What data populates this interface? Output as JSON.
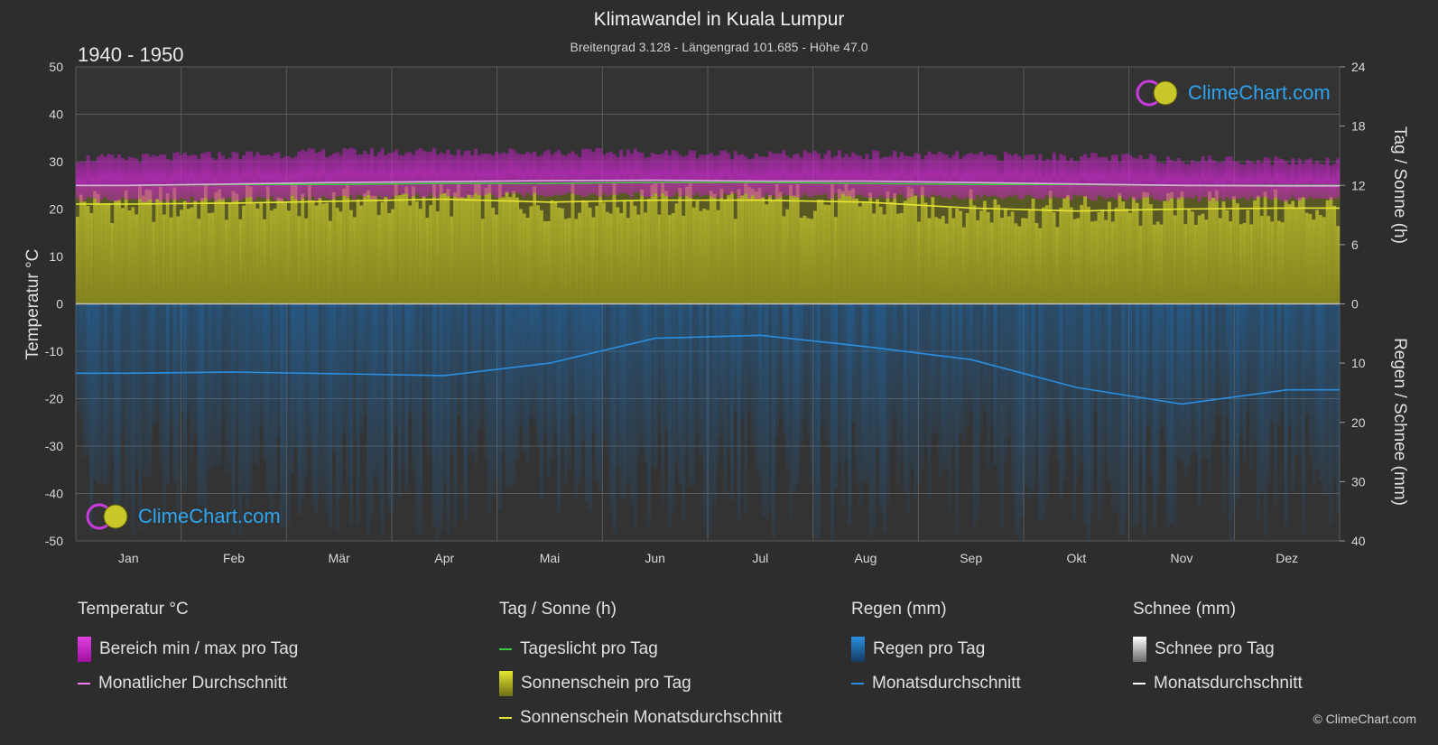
{
  "header": {
    "title": "Klimawandel in Kuala Lumpur",
    "subtitle": "Breitengrad 3.128 - Längengrad 101.685 - Höhe 47.0",
    "period": "1940 - 1950"
  },
  "axes": {
    "left_title": "Temperatur °C",
    "right_top_title": "Tag / Sonne (h)",
    "right_bottom_title": "Regen / Schnee (mm)"
  },
  "logo": {
    "text": "ClimeChart.com"
  },
  "copyright": "© ClimeChart.com",
  "colors": {
    "background": "#2d2d2d",
    "temp_range": "#c81ec8",
    "temp_avg": "#f07cf0",
    "daylight": "#3cc83c",
    "sunshine": "#a8a828",
    "sunshine_avg": "#e6e632",
    "rain": "#1e6eb4",
    "rain_avg": "#2a8ee0",
    "snow": "#d0d0d0",
    "snow_avg": "#ffffff"
  },
  "chart_data": {
    "type": "area",
    "months": [
      "Jan",
      "Feb",
      "Mär",
      "Apr",
      "Mai",
      "Jun",
      "Jul",
      "Aug",
      "Sep",
      "Okt",
      "Nov",
      "Dez"
    ],
    "y_left": {
      "label": "Temperatur °C",
      "min": -50,
      "max": 50,
      "ticks": [
        50,
        40,
        30,
        20,
        10,
        0,
        -10,
        -20,
        -30,
        -40,
        -50
      ]
    },
    "y_right_top": {
      "label": "Tag / Sonne (h)",
      "min": 0,
      "max": 24,
      "ticks": [
        24,
        18,
        12,
        6,
        0
      ]
    },
    "y_right_bottom": {
      "label": "Regen / Schnee (mm)",
      "min": 0,
      "max": 40,
      "ticks": [
        0,
        10,
        20,
        30,
        40
      ]
    },
    "series": [
      {
        "name": "Bereich min / max pro Tag",
        "type": "range",
        "unit": "°C",
        "min": [
          22.5,
          22.6,
          23.0,
          23.4,
          23.6,
          23.6,
          23.3,
          23.3,
          23.1,
          23.0,
          22.8,
          22.6
        ],
        "max": [
          30.5,
          31.2,
          31.8,
          31.9,
          31.8,
          31.6,
          31.3,
          31.3,
          31.0,
          30.8,
          30.3,
          30.0
        ]
      },
      {
        "name": "Monatlicher Durchschnitt",
        "type": "line",
        "unit": "°C",
        "values": [
          25.0,
          25.3,
          25.6,
          25.8,
          26.0,
          26.1,
          25.9,
          25.9,
          25.6,
          25.3,
          25.0,
          24.9
        ]
      },
      {
        "name": "Tageslicht pro Tag",
        "type": "line",
        "unit": "h",
        "values": [
          12.0,
          12.1,
          12.1,
          12.2,
          12.2,
          12.3,
          12.3,
          12.2,
          12.1,
          12.1,
          12.0,
          12.0
        ]
      },
      {
        "name": "Sonnenschein Monatsdurchschnitt",
        "type": "line",
        "unit": "h",
        "values": [
          10.1,
          10.2,
          10.4,
          10.6,
          10.3,
          10.5,
          10.5,
          10.3,
          9.7,
          9.4,
          9.6,
          9.7
        ]
      },
      {
        "name": "Monatsdurchschnitt Regen",
        "type": "line",
        "unit": "mm",
        "values": [
          11.7,
          11.5,
          11.8,
          12.1,
          10.0,
          5.8,
          5.3,
          7.2,
          9.4,
          14.1,
          16.9,
          14.5
        ]
      }
    ]
  },
  "legend": {
    "temperature": {
      "title": "Temperatur °C",
      "items": [
        "Bereich min / max pro Tag",
        "Monatlicher Durchschnitt"
      ]
    },
    "sun": {
      "title": "Tag / Sonne (h)",
      "items": [
        "Tageslicht pro Tag",
        "Sonnenschein pro Tag",
        "Sonnenschein Monatsdurchschnitt"
      ]
    },
    "rain": {
      "title": "Regen (mm)",
      "items": [
        "Regen pro Tag",
        "Monatsdurchschnitt"
      ]
    },
    "snow": {
      "title": "Schnee (mm)",
      "items": [
        "Schnee pro Tag",
        "Monatsdurchschnitt"
      ]
    }
  }
}
